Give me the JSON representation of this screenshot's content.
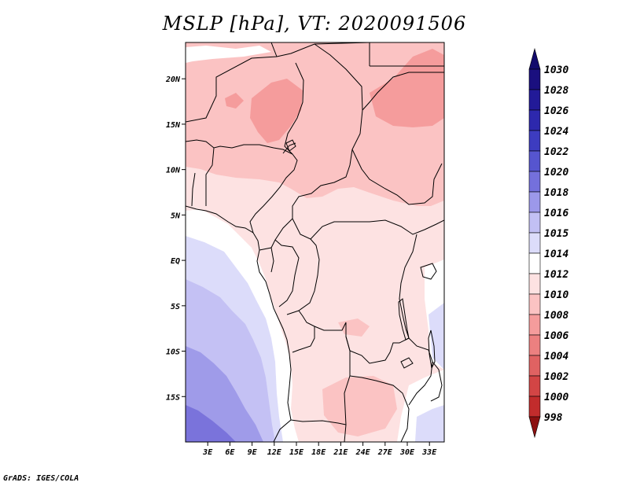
{
  "title": "MSLP [hPa], VT: 2020091506",
  "credit": "GrADS: IGES/COLA",
  "map": {
    "lon_range": [
      0,
      35
    ],
    "lat_range": [
      -20,
      24
    ],
    "lon_ticks": [
      {
        "value": 3,
        "label": "3E"
      },
      {
        "value": 6,
        "label": "6E"
      },
      {
        "value": 9,
        "label": "9E"
      },
      {
        "value": 12,
        "label": "12E"
      },
      {
        "value": 15,
        "label": "15E"
      },
      {
        "value": 18,
        "label": "18E"
      },
      {
        "value": 21,
        "label": "21E"
      },
      {
        "value": 24,
        "label": "24E"
      },
      {
        "value": 27,
        "label": "27E"
      },
      {
        "value": 30,
        "label": "30E"
      },
      {
        "value": 33,
        "label": "33E"
      }
    ],
    "lat_ticks": [
      {
        "value": 20,
        "label": "20N"
      },
      {
        "value": 15,
        "label": "15N"
      },
      {
        "value": 10,
        "label": "10N"
      },
      {
        "value": 5,
        "label": "5N"
      },
      {
        "value": 0,
        "label": "EQ"
      },
      {
        "value": -5,
        "label": "5S"
      },
      {
        "value": -10,
        "label": "10S"
      },
      {
        "value": -15,
        "label": "15S"
      }
    ]
  },
  "colorbar": {
    "levels": [
      {
        "label": "1030",
        "color": "#1a0f7f"
      },
      {
        "label": "1028",
        "color": "#221a98"
      },
      {
        "label": "1026",
        "color": "#2d28ad"
      },
      {
        "label": "1024",
        "color": "#3d3cc0"
      },
      {
        "label": "1022",
        "color": "#5655cf"
      },
      {
        "label": "1020",
        "color": "#7470dc"
      },
      {
        "label": "1018",
        "color": "#9c98ea"
      },
      {
        "label": "1016",
        "color": "#c2c0f4"
      },
      {
        "label": "1015",
        "color": "#dcdcfa"
      },
      {
        "label": "1014",
        "color": "#ffffff"
      },
      {
        "label": "1012",
        "color": "#fde2e2"
      },
      {
        "label": "1010",
        "color": "#fbc3c3"
      },
      {
        "label": "1008",
        "color": "#f59c9c"
      },
      {
        "label": "1006",
        "color": "#ec8080"
      },
      {
        "label": "1004",
        "color": "#e06262"
      },
      {
        "label": "1002",
        "color": "#d34545"
      },
      {
        "label": "1000",
        "color": "#c22c2c"
      },
      {
        "label": "998",
        "color": "#a81a1a"
      }
    ],
    "top_color": "#120a6c",
    "bottom_color": "#8c1010"
  },
  "field_colors": {
    "deep_blue": "#7a73db",
    "mid_blue": "#9f9be9",
    "light_blue": "#c4c1f4",
    "pale_blue": "#dcdcfa",
    "white": "#ffffff",
    "pale_pink": "#fde2e2",
    "pink": "#fbc3c3",
    "salmon": "#f59c9c"
  }
}
